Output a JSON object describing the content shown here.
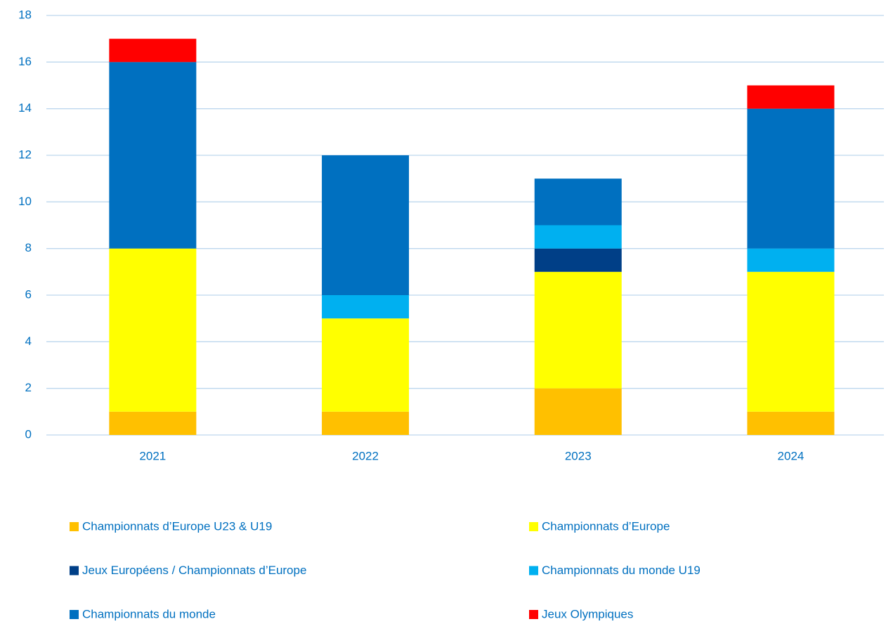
{
  "chart_data": {
    "type": "stacked_bar",
    "categories": [
      "2021",
      "2022",
      "2023",
      "2024"
    ],
    "series": [
      {
        "name": "Championnats d’Europe U23 & U19",
        "color": "#ffc000",
        "values": [
          1,
          1,
          2,
          1
        ]
      },
      {
        "name": "Championnats d’Europe",
        "color": "#ffff00",
        "values": [
          7,
          4,
          5,
          6
        ]
      },
      {
        "name": "Jeux Européens / Championnats d’Europe",
        "color": "#003f87",
        "values": [
          0,
          0,
          1,
          0
        ]
      },
      {
        "name": "Championnats du monde U19",
        "color": "#00b0f0",
        "values": [
          0,
          1,
          1,
          1
        ]
      },
      {
        "name": "Championnats du monde",
        "color": "#0070c0",
        "values": [
          8,
          6,
          2,
          6
        ]
      },
      {
        "name": "Jeux Olympiques",
        "color": "#ff0000",
        "values": [
          1,
          0,
          0,
          1
        ]
      }
    ],
    "ylim": [
      0,
      18
    ],
    "yticks": [
      0,
      2,
      4,
      6,
      8,
      10,
      12,
      14,
      16,
      18
    ],
    "grid": true,
    "legend": "bottom"
  }
}
